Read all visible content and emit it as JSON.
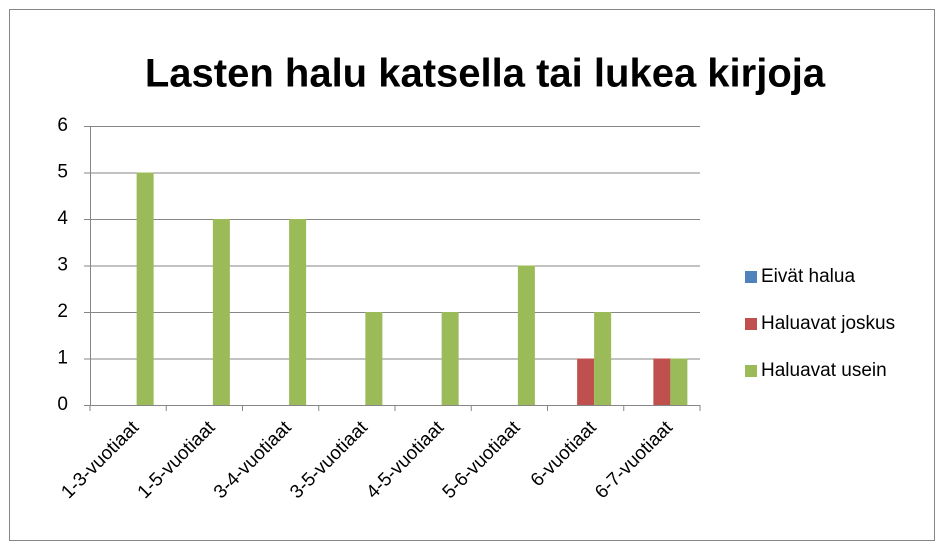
{
  "chart_data": {
    "type": "bar",
    "title": "Lasten halu katsella tai lukea kirjoja",
    "categories": [
      "1-3-vuotiaat",
      "1-5-vuotiaat",
      "3-4-vuotiaat",
      "3-5-vuotiaat",
      "4-5-vuotiaat",
      "5-6-vuotiaat",
      "6-vuotiaat",
      "6-7-vuotiaat"
    ],
    "series": [
      {
        "name": "Eivät halua",
        "color": "#4f81bd",
        "values": [
          0,
          0,
          0,
          0,
          0,
          0,
          0,
          0
        ]
      },
      {
        "name": "Haluavat joskus",
        "color": "#c0504d",
        "values": [
          0,
          0,
          0,
          0,
          0,
          0,
          1,
          1
        ]
      },
      {
        "name": "Haluavat usein",
        "color": "#9bbb59",
        "values": [
          5,
          4,
          4,
          2,
          2,
          3,
          2,
          1
        ]
      }
    ],
    "ylim": [
      0,
      6
    ],
    "yticks": [
      0,
      1,
      2,
      3,
      4,
      5,
      6
    ],
    "grid": true,
    "legend": "right"
  }
}
